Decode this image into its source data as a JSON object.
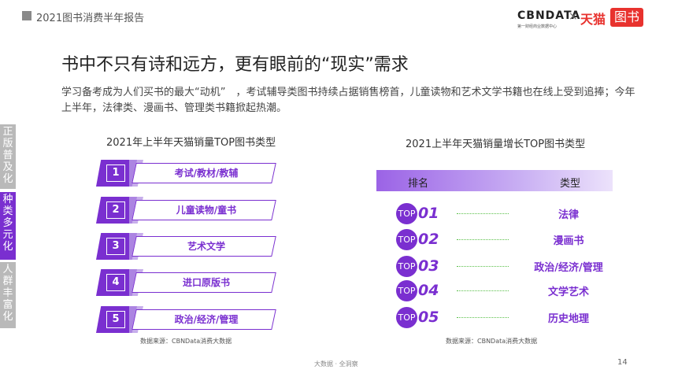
{
  "header": {
    "title": "2021图书消费半年报告",
    "brand_cbn": "CBNDATA",
    "brand_cbn_sub": "第一财经商业数据中心",
    "brand_x": "×",
    "brand_tmall": "天猫",
    "brand_book": "图书"
  },
  "main_title": "书中不只有诗和远方，更有眼前的“现实”需求",
  "intro": "学习备考成为人们买书的最大“动机”　，考试辅导类图书持续占据销售榜首，儿童读物和艺术文学书籍也在线上受到追捧；今年上半年，法律类、漫画书、管理类书籍掀起热潮。",
  "side_tabs": [
    {
      "chars": [
        "正",
        "版",
        "普",
        "及",
        "化"
      ],
      "active": false
    },
    {
      "chars": [
        "种",
        "类",
        "多",
        "元",
        "化"
      ],
      "active": true
    },
    {
      "chars": [
        "人",
        "群",
        "丰",
        "富",
        "化"
      ],
      "active": false
    }
  ],
  "left": {
    "title": "2021年上半年天猫销量TOP图书类型",
    "items": [
      {
        "rank": "1",
        "label": "考试/教材/教辅"
      },
      {
        "rank": "2",
        "label": "儿童读物/童书"
      },
      {
        "rank": "3",
        "label": "艺术文学"
      },
      {
        "rank": "4",
        "label": "进口原版书"
      },
      {
        "rank": "5",
        "label": "政治/经济/管理"
      }
    ],
    "source": "数据来源：CBNData消费大数据"
  },
  "right": {
    "title": "2021上半年天猫销量增长TOP图书类型",
    "col_rank": "排名",
    "col_type": "类型",
    "top_label": "TOP",
    "rows": [
      {
        "num": "01",
        "type": "法律"
      },
      {
        "num": "02",
        "type": "漫画书"
      },
      {
        "num": "03",
        "type": "政治/经济/管理"
      },
      {
        "num": "04",
        "type": "文学艺术"
      },
      {
        "num": "05",
        "type": "历史地理"
      }
    ],
    "source": "数据来源：CBNData消费大数据"
  },
  "footer": "大数据 · 全洞察",
  "page_number": "14",
  "colors": {
    "accent": "#7a2fd0",
    "inactive_tab": "#b9b9b9",
    "brand_red": "#e8322e"
  }
}
